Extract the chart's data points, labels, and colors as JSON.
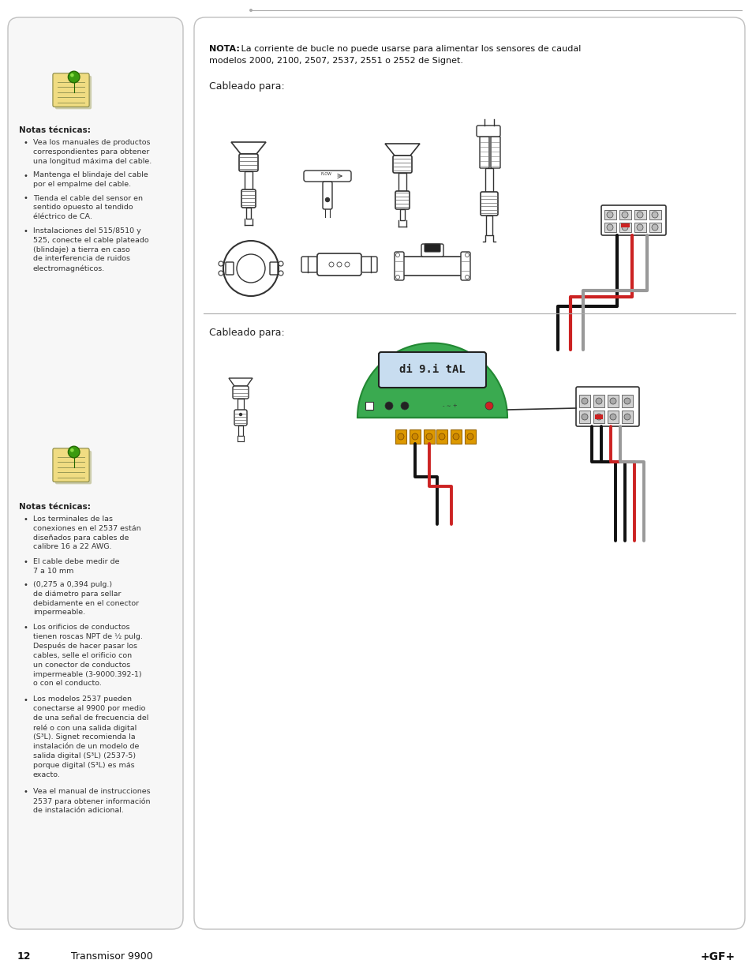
{
  "page_num": "12",
  "page_label": "Transmisor 9900",
  "brand": "+GF+",
  "bg_color": "#ffffff",
  "left_panel_notes1": {
    "title": "Notas técnicas:",
    "bullets": [
      "Vea los manuales de productos\ncorrespondientes para obtener\nuna longitud máxima del cable.",
      "Mantenga el blindaje del cable\npor el empalme del cable.",
      "Tienda el cable del sensor en\nsentido opuesto al tendido\néléctrico de CA.",
      "Instalaciones del 515/8510 y\n525, conecte el cable plateado\n(blindaje) a tierra en caso\nde interferencia de ruidos\nelectromagnéticos."
    ]
  },
  "left_panel_notes2": {
    "title": "Notas técnicas:",
    "bullets": [
      "Los terminales de las\nconexiones en el 2537 están\ndiseñados para cables de\ncalibre 16 a 22 AWG.",
      "El cable debe medir de\n7 a 10 mm",
      "(0,275 a 0,394 pulg.)\nde diámetro para sellar\ndebidamente en el conector\nimpermeable.",
      "Los orificios de conductos\ntienen roscas NPT de ½ pulg.\nDespués de hacer pasar los\ncables, selle el orificio con\nun conector de conductos\nimpermeable (3-9000.392-1)\no con el conducto.",
      "Los modelos 2537 pueden\nconectarse al 9900 por medio\nde una señal de frecuencia del\nrelé o con una salida digital\n(S³L). Signet recomienda la\ninstalación de un modelo de\nsalida digital (S³L) (2537-5)\nporque digital (S³L) es más\nexacto.",
      "Vea el manual de instrucciones\n2537 para obtener información\nde instalación adicional."
    ]
  },
  "right_section1_title": "Cableado para:",
  "right_section2_title": "Cableado para:",
  "nota_bold": "NOTA:",
  "nota_rest": " La corriente de bucle no puede usarse para alimentar los sensores de caudal",
  "nota_line2": "modelos 2000, 2100, 2507, 2537, 2551 o 2552 de Signet."
}
